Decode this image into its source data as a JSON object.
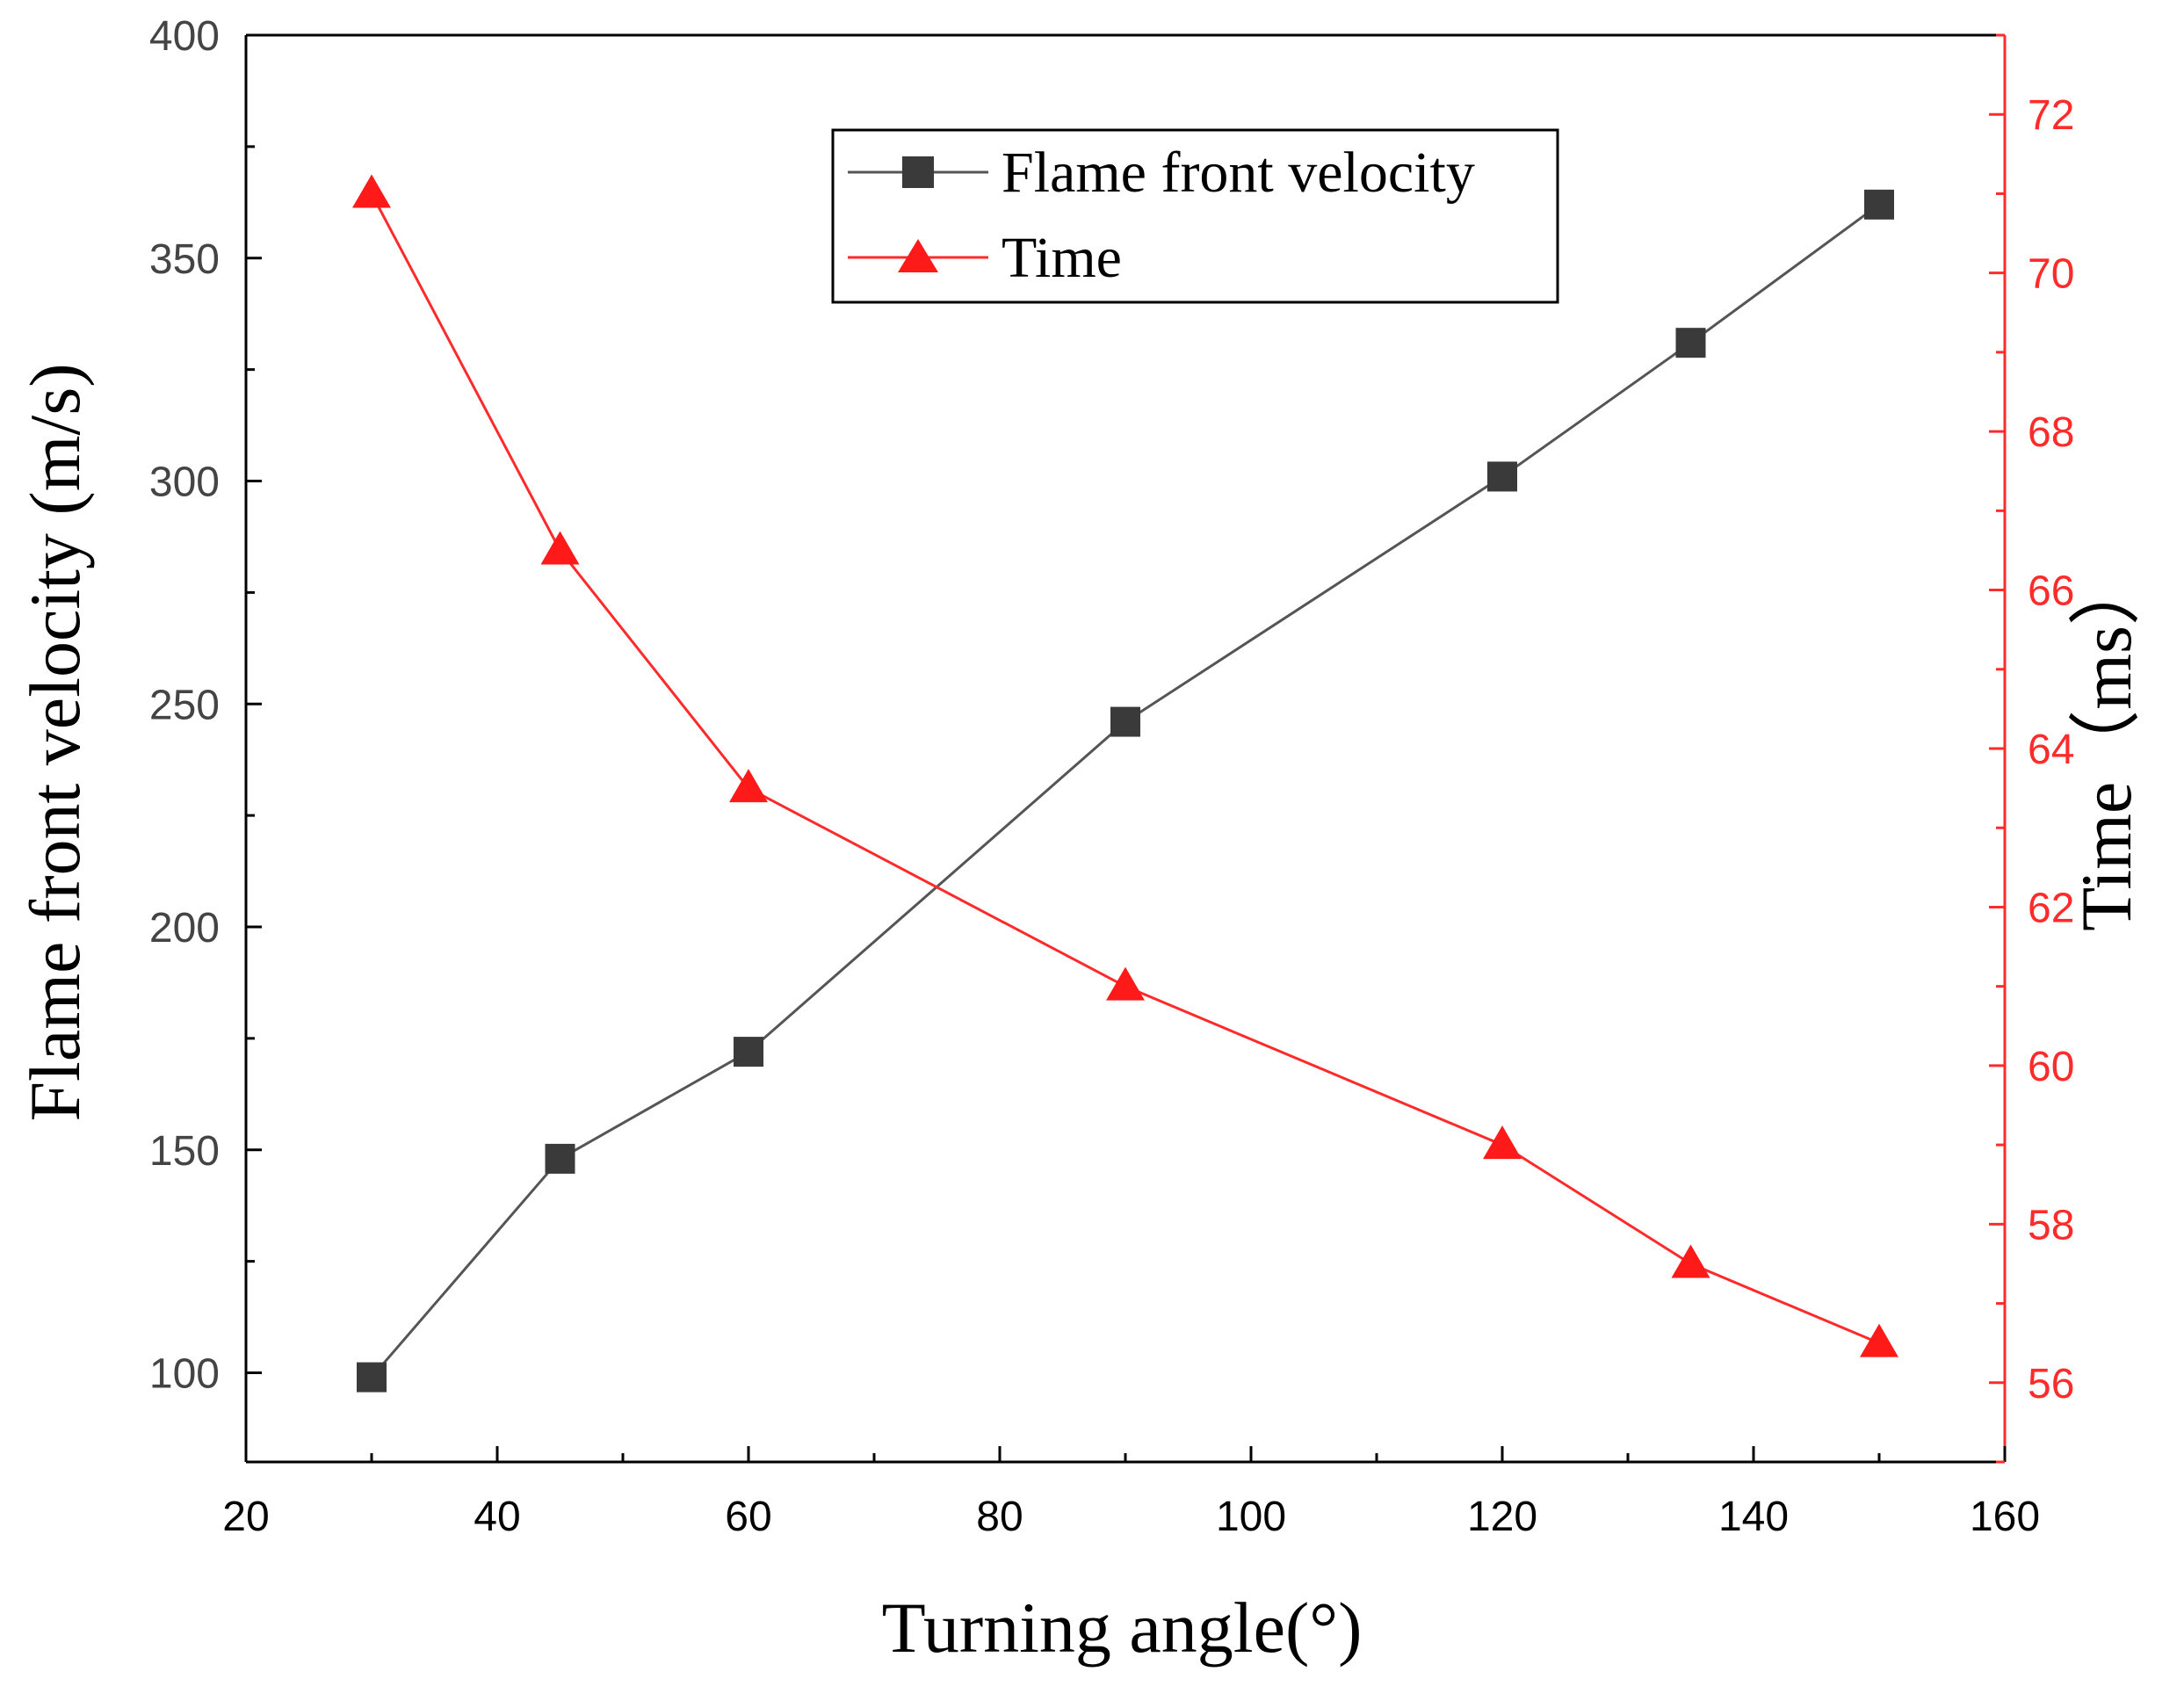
{
  "chart_data": {
    "type": "line",
    "xlabel": "Turning angle(°)",
    "ylabel_left": "Flame front velocity (m/s)",
    "ylabel_right": "Time（ms）",
    "xlim": [
      20,
      160
    ],
    "ylim_left": [
      80,
      400
    ],
    "ylim_right": [
      55,
      73
    ],
    "x_ticks": [
      20,
      40,
      60,
      80,
      100,
      120,
      140,
      160
    ],
    "y_left_ticks": [
      100,
      150,
      200,
      250,
      300,
      350,
      400
    ],
    "y_right_ticks": [
      56,
      58,
      60,
      62,
      64,
      66,
      68,
      70,
      72
    ],
    "x": [
      30,
      45,
      60,
      90,
      120,
      135,
      150
    ],
    "series": [
      {
        "name": "Flame front velocity",
        "axis": "left",
        "marker": "square",
        "color": "#2b2b2b",
        "line_color": "#555555",
        "values": [
          99,
          148,
          172,
          246,
          301,
          331,
          362
        ]
      },
      {
        "name": "Time",
        "axis": "right",
        "marker": "triangle",
        "color": "#ff1a1a",
        "line_color": "#ff2a2a",
        "values": [
          71.0,
          66.5,
          63.5,
          61.0,
          59.0,
          57.5,
          56.5
        ]
      }
    ],
    "legend": {
      "position": "top-center"
    },
    "right_axis_color": "#ff2a2a"
  }
}
